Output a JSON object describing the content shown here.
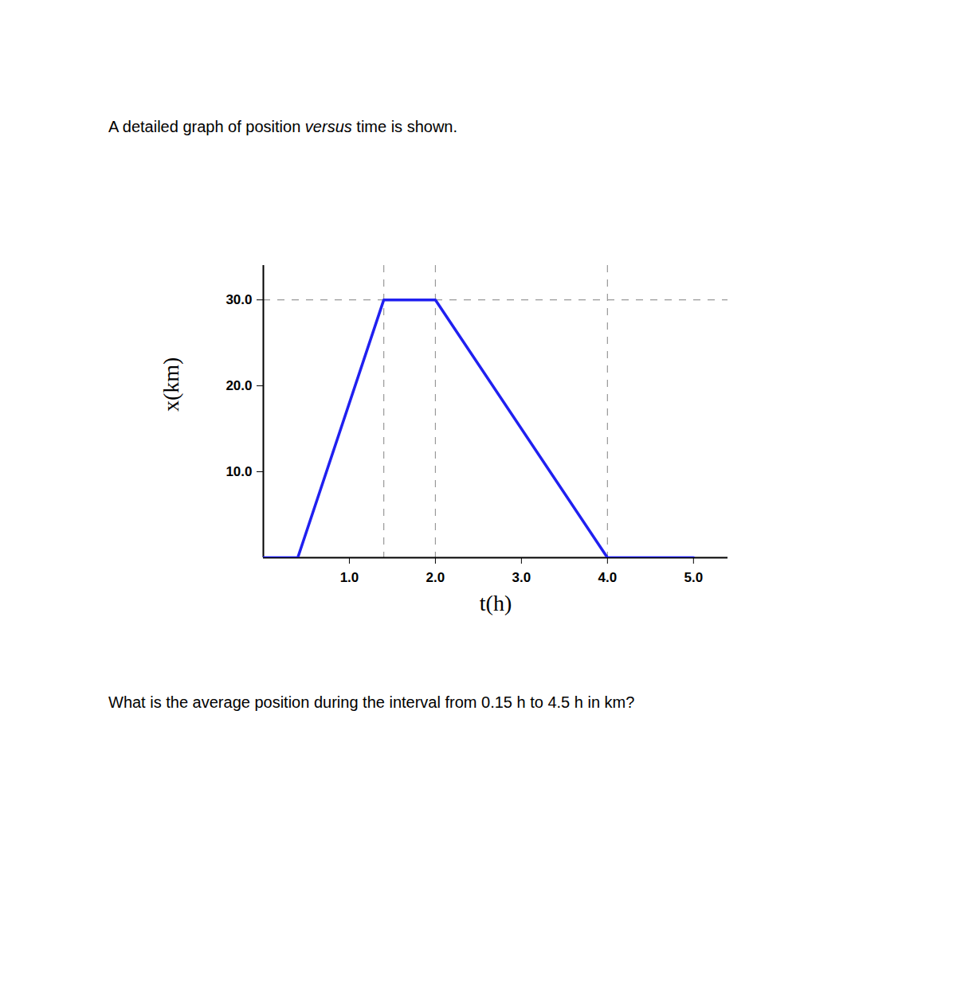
{
  "intro_parts": [
    {
      "text": "A detailed graph of position "
    },
    {
      "text": "versus",
      "italic": true
    },
    {
      "text": " time is shown."
    }
  ],
  "question": "What is the average position during the interval from 0.15 h to 4.5 h in km?",
  "chart_data": {
    "type": "line",
    "x_label": "t(h)",
    "y_label": "x(km)",
    "x": [
      0,
      0.4,
      1.4,
      2.0,
      4.0,
      5.0
    ],
    "values": [
      0,
      0,
      30,
      30,
      0,
      0
    ],
    "color": "#2020f0",
    "xlim": [
      0,
      5.4
    ],
    "ylim": [
      0,
      34
    ],
    "xticks": [
      {
        "value": 1,
        "label": "1.0"
      },
      {
        "value": 2,
        "label": "2.0"
      },
      {
        "value": 3,
        "label": "3.0"
      },
      {
        "value": 4,
        "label": "4.0"
      },
      {
        "value": 5,
        "label": "5.0"
      }
    ],
    "yticks": [
      {
        "value": 10,
        "label": "10.0"
      },
      {
        "value": 20,
        "label": "20.0"
      },
      {
        "value": 30,
        "label": "30.0"
      }
    ],
    "reference_lines": {
      "x": [
        1.4,
        2.0,
        4.0
      ],
      "y": [
        30
      ]
    },
    "grid": false
  }
}
